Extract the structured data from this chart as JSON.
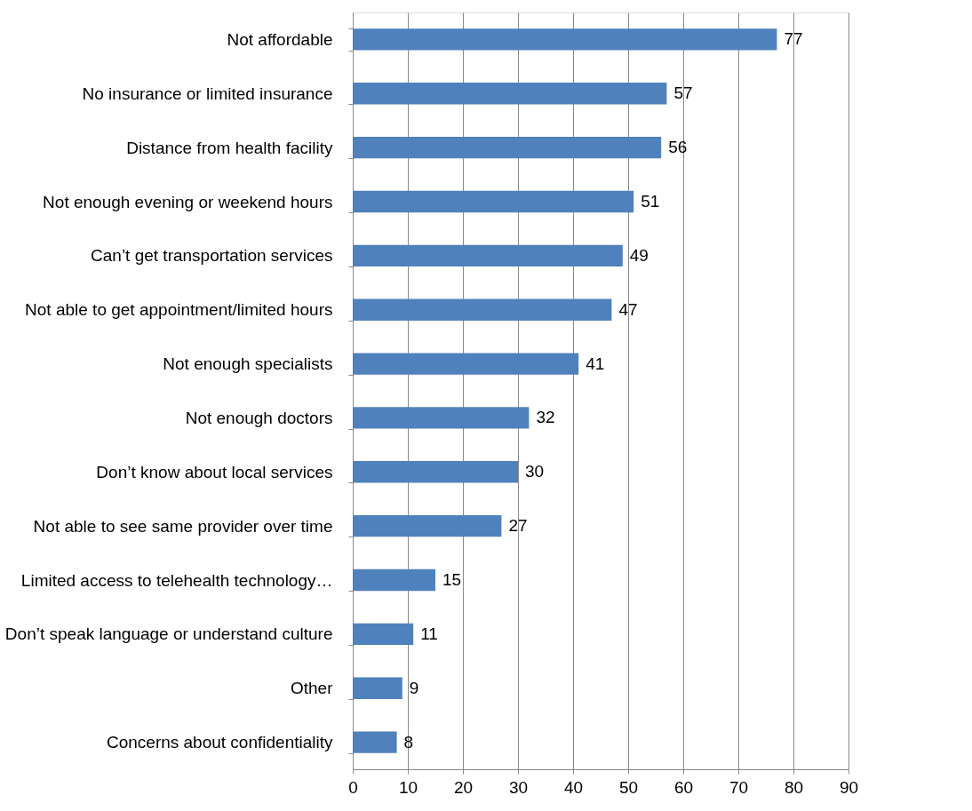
{
  "chart_data": {
    "type": "bar",
    "orientation": "horizontal",
    "categories": [
      "Not affordable",
      "No insurance or limited insurance",
      "Distance from health facility",
      "Not enough evening or weekend hours",
      "Can’t get transportation services",
      "Not able to get appointment/limited hours",
      "Not enough specialists",
      "Not enough doctors",
      "Don’t know about local services",
      "Not able to see same provider over time",
      "Limited access to telehealth technology…",
      "Don’t speak language or understand culture",
      "Other",
      "Concerns about confidentiality"
    ],
    "values": [
      77,
      57,
      56,
      51,
      49,
      47,
      41,
      32,
      30,
      27,
      15,
      11,
      9,
      8
    ],
    "color": "#4f81bd",
    "xlim": [
      0,
      90
    ],
    "xticks": [
      0,
      10,
      20,
      30,
      40,
      50,
      60,
      70,
      80,
      90
    ],
    "grid": "x",
    "data_labels": true
  }
}
